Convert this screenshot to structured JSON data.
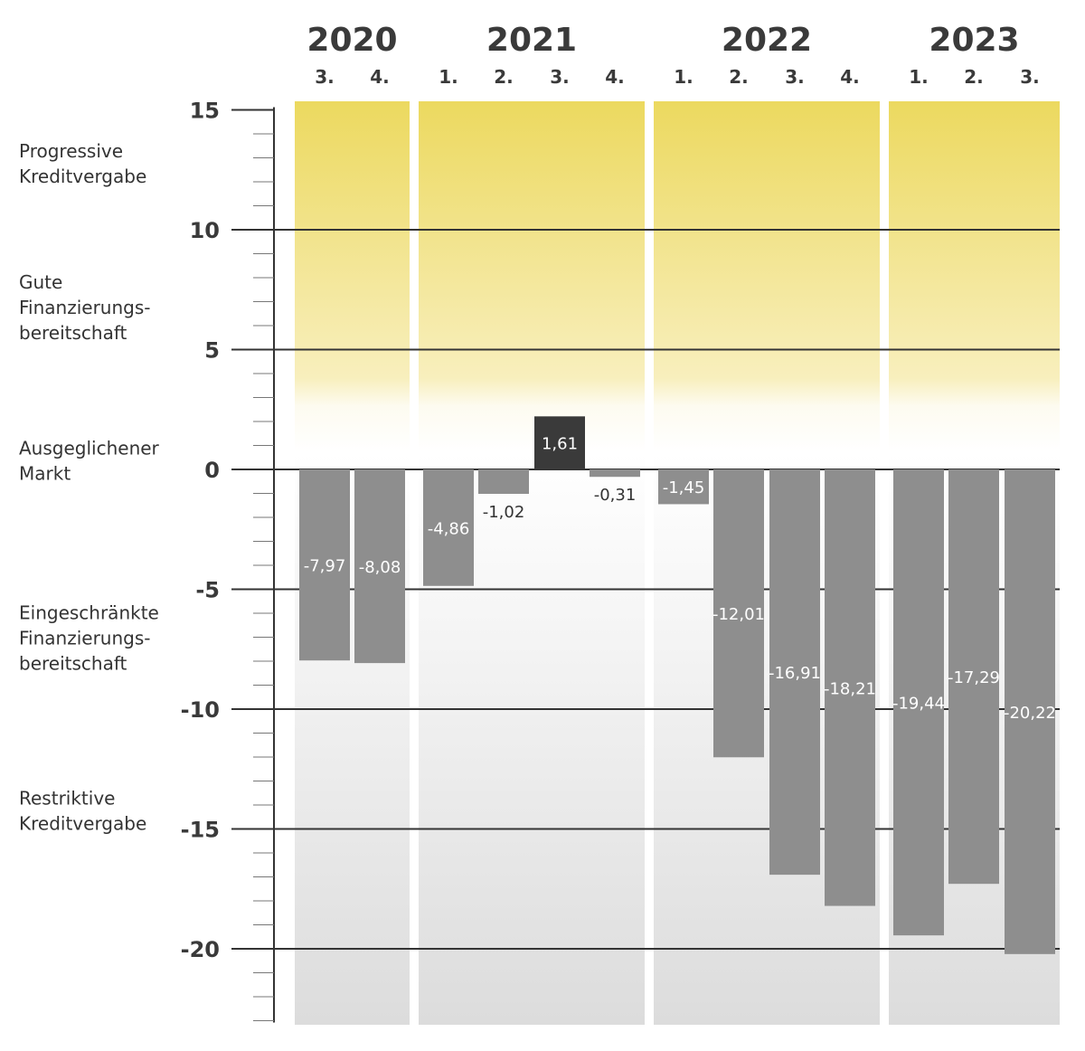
{
  "chart_data": {
    "type": "bar",
    "years": [
      {
        "label": "2020",
        "quarters": [
          "3.",
          "4."
        ]
      },
      {
        "label": "2021",
        "quarters": [
          "1.",
          "2.",
          "3.",
          "4."
        ]
      },
      {
        "label": "2022",
        "quarters": [
          "1.",
          "2.",
          "3.",
          "4."
        ]
      },
      {
        "label": "2023",
        "quarters": [
          "1.",
          "2.",
          "3."
        ]
      }
    ],
    "values": [
      -7.97,
      -8.08,
      -4.86,
      -1.02,
      1.61,
      -0.31,
      -1.45,
      -12.01,
      -16.91,
      -18.21,
      -19.44,
      -17.29,
      -20.22
    ],
    "value_labels": [
      "-7,97",
      "-8,08",
      "-4,86",
      "-1,02",
      "1,61",
      "-0,31",
      "-1,45",
      "-12,01",
      "-16,91",
      "-18,21",
      "-19,44",
      "-17,29",
      "-20,22"
    ],
    "ylim": [
      -23,
      15
    ],
    "yticks": [
      15,
      10,
      5,
      0,
      -5,
      -10,
      -15,
      -20
    ],
    "ytick_labels": [
      "15",
      "10",
      "5",
      "0",
      "-5",
      "-10",
      "-15",
      "-20"
    ],
    "zones": [
      {
        "lines": [
          "Progressive",
          "Kreditvergabe"
        ],
        "y": 12.5
      },
      {
        "lines": [
          "Gute",
          "Finanzierungs-",
          "bereitschaft"
        ],
        "y": 6.5
      },
      {
        "lines": [
          "Ausgeglichener",
          "Markt"
        ],
        "y": 0.1
      },
      {
        "lines": [
          "Eingeschränkte",
          "Finanzierungs-",
          "bereitschaft"
        ],
        "y": -7.3
      },
      {
        "lines": [
          "Restriktive",
          "Kreditvergabe"
        ],
        "y": -14.5
      }
    ],
    "colors": {
      "bar": "#8e8e8e",
      "bar_positive": "#3a3a3a",
      "yellow": "#ecd95f",
      "grey_bg": "#dcdcdc",
      "gridline": "#333333"
    },
    "grid": true
  }
}
